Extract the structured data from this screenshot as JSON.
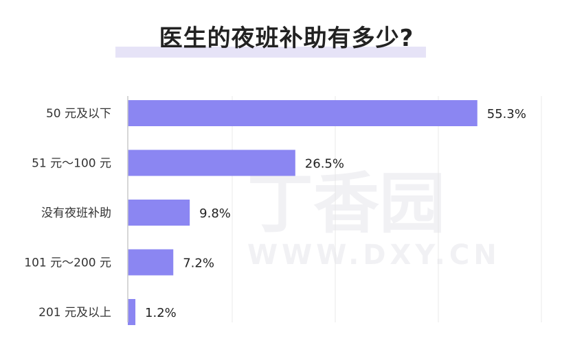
{
  "chart_data": {
    "type": "bar",
    "orientation": "horizontal",
    "title": "医生的夜班补助有多少?",
    "categories": [
      "50 元及以下",
      "51 元～100 元",
      "没有夜班补助",
      "101 元～200 元",
      "201 元及以上"
    ],
    "values": [
      55.3,
      26.5,
      9.8,
      7.2,
      1.2
    ],
    "value_labels": [
      "55.3%",
      "26.5%",
      "9.8%",
      "7.2%",
      "1.2%"
    ],
    "xlim": [
      0,
      60
    ],
    "grid": true,
    "colors": {
      "bar": "#8b86f2",
      "title_highlight": "#e6e3f7"
    }
  },
  "watermark": {
    "logo": "丁香园",
    "url": "WWW.DXY.CN"
  }
}
